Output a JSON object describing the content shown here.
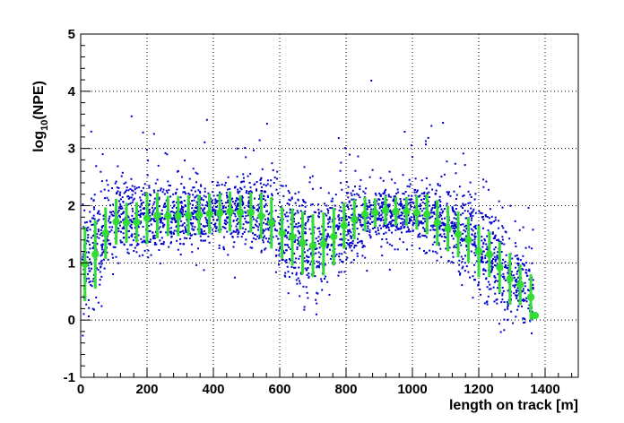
{
  "chart_data": {
    "type": "scatter",
    "xlabel": "length on track [m]",
    "ylabel": {
      "prefix": "log",
      "subscript": "10",
      "suffix": "(NPE)"
    },
    "xlim": [
      0,
      1500
    ],
    "ylim": [
      -1,
      5
    ],
    "x_ticks": [
      0,
      200,
      400,
      600,
      800,
      1000,
      1200,
      1400
    ],
    "y_ticks": [
      -1,
      0,
      1,
      2,
      3,
      4,
      5
    ],
    "grid": true,
    "legend": "none",
    "colors": {
      "scatter": "#0000cc",
      "profile": "#33dd33"
    },
    "profile_series": {
      "x": [
        13,
        44,
        75,
        107,
        138,
        169,
        200,
        231,
        263,
        294,
        325,
        357,
        388,
        419,
        450,
        481,
        513,
        544,
        575,
        607,
        638,
        669,
        700,
        732,
        763,
        794,
        825,
        857,
        888,
        919,
        950,
        982,
        1013,
        1044,
        1075,
        1107,
        1138,
        1169,
        1200,
        1232,
        1263,
        1294,
        1325,
        1357
      ],
      "y": [
        0.98,
        1.15,
        1.52,
        1.72,
        1.7,
        1.71,
        1.78,
        1.83,
        1.82,
        1.82,
        1.83,
        1.84,
        1.86,
        1.87,
        1.9,
        1.88,
        1.88,
        1.82,
        1.7,
        1.52,
        1.45,
        1.35,
        1.3,
        1.33,
        1.46,
        1.65,
        1.76,
        1.85,
        1.88,
        1.92,
        1.9,
        1.9,
        1.88,
        1.85,
        1.7,
        1.6,
        1.5,
        1.4,
        1.2,
        1.15,
        0.92,
        0.72,
        0.62,
        0.4
      ],
      "err": [
        0.65,
        0.6,
        0.45,
        0.4,
        0.35,
        0.35,
        0.45,
        0.4,
        0.35,
        0.35,
        0.35,
        0.35,
        0.35,
        0.35,
        0.35,
        0.3,
        0.35,
        0.4,
        0.45,
        0.45,
        0.5,
        0.55,
        0.55,
        0.55,
        0.5,
        0.4,
        0.35,
        0.3,
        0.25,
        0.25,
        0.25,
        0.25,
        0.3,
        0.35,
        0.4,
        0.4,
        0.4,
        0.4,
        0.45,
        0.4,
        0.45,
        0.45,
        0.35,
        0.4
      ]
    },
    "profile_end_point": {
      "x": 1370,
      "y": 0.08
    },
    "scatter_envelope": {
      "x": [
        0,
        50,
        100,
        200,
        300,
        400,
        500,
        550,
        600,
        650,
        700,
        750,
        800,
        850,
        900,
        1000,
        1050,
        1100,
        1150,
        1200,
        1250,
        1300,
        1350
      ],
      "mean": [
        1.0,
        1.35,
        1.7,
        1.8,
        1.82,
        1.85,
        1.88,
        1.85,
        1.6,
        1.42,
        1.3,
        1.35,
        1.65,
        1.8,
        1.88,
        1.9,
        1.85,
        1.7,
        1.55,
        1.35,
        1.0,
        0.75,
        0.5
      ],
      "sigma": [
        0.6,
        0.45,
        0.35,
        0.32,
        0.3,
        0.3,
        0.3,
        0.32,
        0.4,
        0.45,
        0.48,
        0.45,
        0.35,
        0.3,
        0.25,
        0.25,
        0.28,
        0.33,
        0.38,
        0.4,
        0.45,
        0.45,
        0.35
      ]
    },
    "scatter_points": 3000
  }
}
